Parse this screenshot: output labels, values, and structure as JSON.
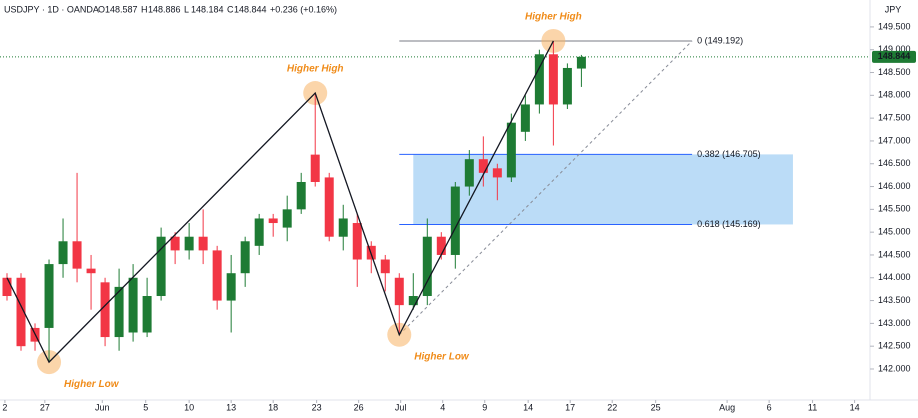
{
  "header": {
    "symbol": "USDJPY · 1D · OANDA",
    "labels": [
      "O",
      "H",
      "L",
      "C"
    ],
    "change": "+0.236 (+0.16%)",
    "currency": "JPY"
  },
  "chart_data": {
    "type": "candlestick",
    "ohlc": {
      "open": [
        144.0,
        144.0,
        142.9,
        142.9,
        144.3,
        144.8,
        144.2,
        143.9,
        142.7,
        142.8,
        142.8,
        143.6,
        144.9,
        144.6,
        144.9,
        144.6,
        143.5,
        144.1,
        144.7,
        145.3,
        145.1,
        145.5,
        146.7,
        146.2,
        144.9,
        145.2,
        144.7,
        144.4,
        144.0,
        143.4,
        143.6,
        144.9,
        144.5,
        146.0,
        146.6,
        146.4,
        146.2,
        147.2,
        147.8,
        148.9,
        147.8,
        148.587
      ],
      "high": [
        144.1,
        144.1,
        143.0,
        144.4,
        145.3,
        146.3,
        144.5,
        144.0,
        144.2,
        144.3,
        144.0,
        145.1,
        145.0,
        145.2,
        145.5,
        144.7,
        144.5,
        144.9,
        145.4,
        145.4,
        145.8,
        146.3,
        148.05,
        146.3,
        145.6,
        145.4,
        144.8,
        144.5,
        144.1,
        144.1,
        145.3,
        145.0,
        146.1,
        146.8,
        147.1,
        146.5,
        147.6,
        148.0,
        149.0,
        149.192,
        148.7,
        148.886
      ],
      "low": [
        143.5,
        142.4,
        142.4,
        142.15,
        144.0,
        143.9,
        143.3,
        142.5,
        142.4,
        142.6,
        142.7,
        143.5,
        144.3,
        144.4,
        144.3,
        143.3,
        142.8,
        143.8,
        144.5,
        144.9,
        144.8,
        145.4,
        146.0,
        144.8,
        144.6,
        143.8,
        144.1,
        143.7,
        142.75,
        143.3,
        143.4,
        144.4,
        144.2,
        145.8,
        146.0,
        145.7,
        146.1,
        147.0,
        147.6,
        146.9,
        147.7,
        148.184
      ],
      "close": [
        143.6,
        142.5,
        142.6,
        144.3,
        144.8,
        144.2,
        144.1,
        142.7,
        143.8,
        144.0,
        143.6,
        144.9,
        144.6,
        144.9,
        144.6,
        143.5,
        144.1,
        144.8,
        145.3,
        145.2,
        145.5,
        146.1,
        146.1,
        144.9,
        145.3,
        144.4,
        144.4,
        144.1,
        143.4,
        143.6,
        144.9,
        144.5,
        146.0,
        146.6,
        146.3,
        146.2,
        147.4,
        147.8,
        148.9,
        147.8,
        148.6,
        148.844
      ]
    },
    "up_color": "#1e7b34",
    "down_color": "#f23645",
    "xlim": [
      -0.5,
      61.6
    ],
    "xticks": [
      {
        "value": -0.15,
        "label": "2"
      },
      {
        "value": 2.7,
        "label": "27"
      },
      {
        "value": 6.8,
        "label": "Jun"
      },
      {
        "value": 9.9,
        "label": "5"
      },
      {
        "value": 13,
        "label": "10"
      },
      {
        "value": 16,
        "label": "13"
      },
      {
        "value": 19,
        "label": "18"
      },
      {
        "value": 22.1,
        "label": "23"
      },
      {
        "value": 25.1,
        "label": "26"
      },
      {
        "value": 28.1,
        "label": "Jul"
      },
      {
        "value": 31.1,
        "label": "4"
      },
      {
        "value": 34.1,
        "label": "9"
      },
      {
        "value": 37.2,
        "label": "14"
      },
      {
        "value": 40.2,
        "label": "17"
      },
      {
        "value": 43.2,
        "label": "22"
      },
      {
        "value": 46.3,
        "label": "25"
      },
      {
        "value": 51.4,
        "label": "Aug"
      },
      {
        "value": 54.4,
        "label": "6"
      },
      {
        "value": 57.5,
        "label": "11"
      },
      {
        "value": 60.5,
        "label": "14"
      }
    ],
    "ylim": [
      141.32,
      150.09
    ],
    "yticks": [
      {
        "value": 142.0,
        "label": "142.000"
      },
      {
        "value": 142.5,
        "label": "142.500"
      },
      {
        "value": 143.0,
        "label": "143.000"
      },
      {
        "value": 143.5,
        "label": "143.500"
      },
      {
        "value": 144.0,
        "label": "144.000"
      },
      {
        "value": 144.5,
        "label": "144.500"
      },
      {
        "value": 145.0,
        "label": "145.000"
      },
      {
        "value": 145.5,
        "label": "145.500"
      },
      {
        "value": 146.0,
        "label": "146.000"
      },
      {
        "value": 146.5,
        "label": "146.500"
      },
      {
        "value": 147.0,
        "label": "147.000"
      },
      {
        "value": 147.5,
        "label": "147.500"
      },
      {
        "value": 148.0,
        "label": "148.000"
      },
      {
        "value": 148.5,
        "label": "148.500"
      },
      {
        "value": 149.0,
        "label": "149.000"
      },
      {
        "value": 149.5,
        "label": "149.500"
      }
    ],
    "swing_line": {
      "x": [
        0,
        3,
        22,
        28,
        39
      ],
      "y": [
        144.0,
        142.15,
        148.05,
        142.75,
        149.192
      ],
      "color": "#131722"
    },
    "trend_line": {
      "x": [
        28,
        48.9
      ],
      "y": [
        142.75,
        149.192
      ],
      "color": "#8a8e99"
    },
    "fib": {
      "x": [
        28,
        48.9
      ],
      "box_x": [
        29,
        56.1
      ],
      "box_color": "#bbdcf7",
      "levels": [
        {
          "label": "0 (149.192)",
          "price": 149.192,
          "color": "#787b86"
        },
        {
          "label": "0.382 (146.705)",
          "price": 146.705,
          "color": "#2962ff"
        },
        {
          "label": "0.618 (145.169)",
          "price": 145.169,
          "color": "#2962ff"
        }
      ]
    },
    "annotations": [
      {
        "text": "Higher Low",
        "x": 3,
        "y": 142.15
      },
      {
        "text": "Higher High",
        "x": 22,
        "y": 148.05
      },
      {
        "text": "Higher Low",
        "x": 28,
        "y": 142.75
      },
      {
        "text": "Higher High",
        "x": 39,
        "y": 149.192
      }
    ]
  }
}
